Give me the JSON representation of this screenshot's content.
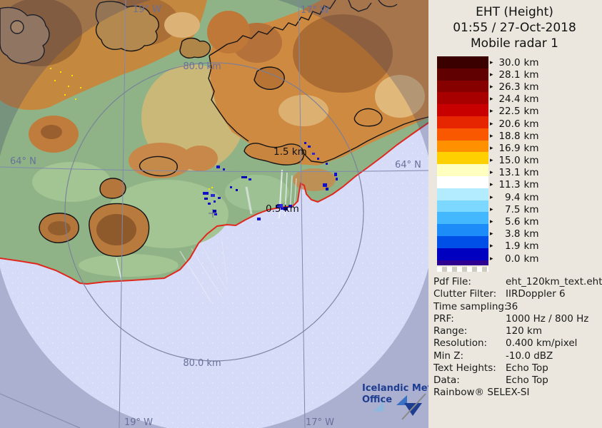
{
  "panel": {
    "title_line1": "EHT (Height)",
    "title_line2": "01:55 / 27-Oct-2018",
    "title_line3": "Mobile radar 1",
    "scale": {
      "ticks": [
        "30.0",
        "28.1",
        "26.3",
        "24.4",
        "22.5",
        "20.6",
        "18.8",
        "16.9",
        "15.0",
        "13.1",
        "11.3",
        "9.4",
        "7.5",
        "5.6",
        "3.8",
        "1.9",
        "0.0"
      ],
      "tick_unit": "km",
      "band_colors": [
        "#3a0000",
        "#600000",
        "#860000",
        "#a80000",
        "#c80000",
        "#e62600",
        "#fa5800",
        "#ff9000",
        "#ffd000",
        "#ffffc0",
        "#ffffff",
        "#b4ecff",
        "#7cd8ff",
        "#44b8ff",
        "#1c8cf8",
        "#0050e8",
        "#0000c0"
      ],
      "extra_band_color": "#2e0090"
    },
    "metadata": [
      {
        "label": "Pdf File:",
        "value": "eht_120km_text.eht"
      },
      {
        "label": "Clutter Filter:",
        "value": "IIRDoppler 6"
      },
      {
        "label": "Time sampling:",
        "value": "36"
      },
      {
        "label": "PRF:",
        "value": "1000 Hz / 800 Hz"
      },
      {
        "label": "Range:",
        "value": "120 km"
      },
      {
        "label": "Resolution:",
        "value": "0.400 km/pixel"
      },
      {
        "label": "Min Z:",
        "value": "-10.0 dBZ"
      },
      {
        "label": "Text Heights:",
        "value": "Echo Top"
      },
      {
        "label": "Data:",
        "value": "Echo Top"
      }
    ],
    "footer": "Rainbow® SELEX-SI"
  },
  "map": {
    "labels": {
      "ring_top": "80.0 km",
      "ring_bottom": "80.0 km",
      "lat_left": "64° N",
      "lat_right": "64° N",
      "lon_top_left": "19° W",
      "lon_top_right": "17° W",
      "lon_bottom_left": "19° W",
      "lon_bottom_right": "17° W"
    },
    "echo_labels": {
      "0": "1.5 km",
      "1": "0.5 km"
    },
    "logo": {
      "line1": "Icelandic Met",
      "line2": "Office"
    },
    "colors": {
      "sea_inside": "#d6dbf7",
      "land": "#8fb386",
      "coastline": "#e0281e",
      "glacier_outline": "#141414",
      "graticule": "#8189ae",
      "range_ring": "#777d9a",
      "map_label": "#68719a",
      "echo": "#1410c8",
      "logo_blue": "#1d3d91",
      "panel_bg": "#ebe7de"
    }
  }
}
